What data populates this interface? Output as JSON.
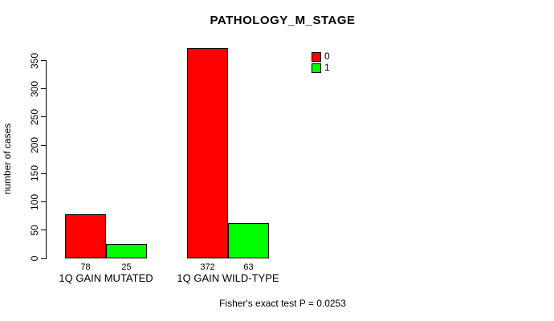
{
  "chart_data": {
    "type": "bar",
    "title": "PATHOLOGY_M_STAGE",
    "ylabel": "number of cases",
    "xlabel": "",
    "categories": [
      "1Q GAIN MUTATED",
      "1Q GAIN WILD-TYPE"
    ],
    "series": [
      {
        "name": "0",
        "color": "#FF0000",
        "values": [
          78,
          372
        ]
      },
      {
        "name": "1",
        "color": "#00FF00",
        "values": [
          25,
          63
        ]
      }
    ],
    "value_labels": [
      [
        "78",
        "25"
      ],
      [
        "372",
        "63"
      ]
    ],
    "yticks": [
      0,
      50,
      100,
      150,
      200,
      250,
      300,
      350
    ],
    "ylim": [
      0,
      372
    ],
    "grid": false,
    "legend_position": "top-right",
    "bar_border_color": "#000000",
    "background_color": "#FFFFFF",
    "footer": "Fisher's exact test P = 0.0253"
  }
}
